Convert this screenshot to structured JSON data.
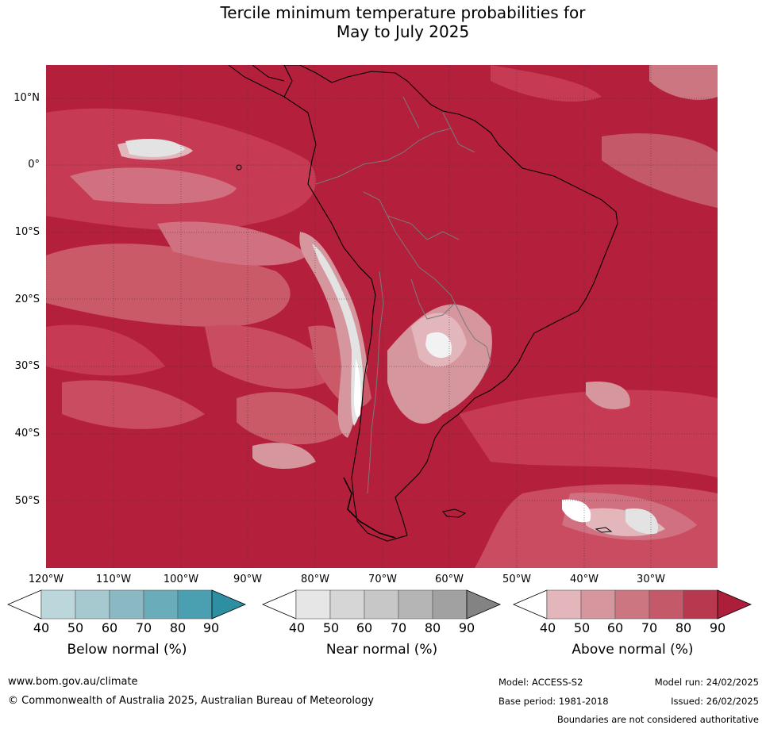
{
  "title": {
    "line1": "Tercile minimum temperature probabilities for",
    "line2": "May to July 2025"
  },
  "map": {
    "latitude_labels": [
      "10°N",
      "0°",
      "10°S",
      "20°S",
      "30°S",
      "40°S",
      "50°S"
    ],
    "longitude_labels": [
      "120°W",
      "110°W",
      "100°W",
      "90°W",
      "80°W",
      "70°W",
      "60°W",
      "50°W",
      "40°W",
      "30°W"
    ],
    "dominant_category": "Above normal",
    "colors": {
      "ocean_base": "#b41f3c",
      "above_80": "#c73a54",
      "above_70": "#cb5a68",
      "above_60": "#d4909a",
      "near_white": "#ffffff",
      "near_light": "#e3e3e3",
      "coast": "#000000",
      "borders": "#7a7a7a",
      "grid": "#333333"
    }
  },
  "colorbars": [
    {
      "name": "below",
      "label": "Below normal (%)",
      "ticks": [
        "40",
        "50",
        "60",
        "70",
        "80",
        "90"
      ],
      "colors": [
        "#ffffff",
        "#bcd7dc",
        "#a6c9cf",
        "#8ab9c3",
        "#6aacb9",
        "#4aa0b1",
        "#2e8fa3"
      ]
    },
    {
      "name": "near",
      "label": "Near normal (%)",
      "ticks": [
        "40",
        "50",
        "60",
        "70",
        "80",
        "90"
      ],
      "colors": [
        "#ffffff",
        "#e6e6e6",
        "#d6d6d6",
        "#c7c7c7",
        "#b5b5b5",
        "#a1a1a1",
        "#838383"
      ]
    },
    {
      "name": "above",
      "label": "Above normal (%)",
      "ticks": [
        "40",
        "50",
        "60",
        "70",
        "80",
        "90"
      ],
      "colors": [
        "#ffffff",
        "#e3b6bc",
        "#d5969e",
        "#cb7680",
        "#c45a69",
        "#b8394f",
        "#ad1e3a"
      ]
    }
  ],
  "footer": {
    "website": "www.bom.gov.au/climate",
    "copyright": "© Commonwealth of Australia 2025, Australian Bureau of Meteorology",
    "model": "Model: ACCESS-S2",
    "model_run": "Model run: 24/02/2025",
    "base_period": "Base period: 1981-2018",
    "issued": "Issued: 26/02/2025",
    "disclaimer": "Boundaries are not considered authoritative"
  }
}
